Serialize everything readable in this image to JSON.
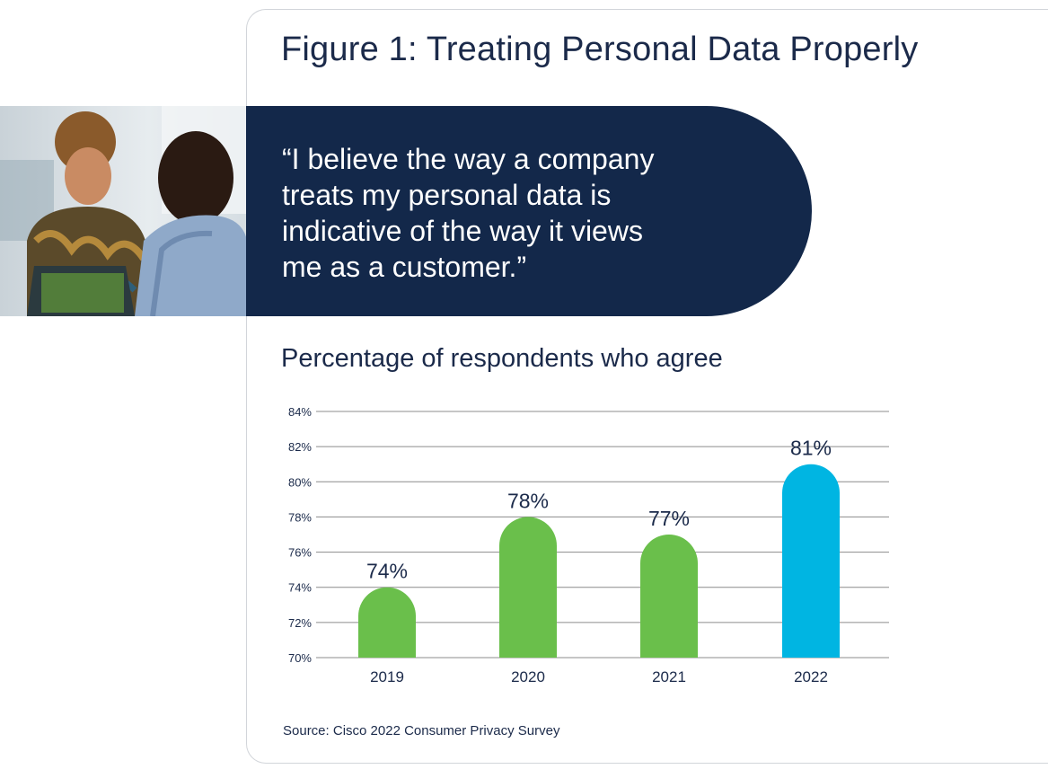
{
  "title": "Figure 1: Treating Personal Data Properly",
  "quote": {
    "lines": [
      "“I believe the way a company",
      " treats my personal data is",
      " indicative of the way it views",
      " me as a customer.”"
    ]
  },
  "subtitle": "Percentage of respondents who agree",
  "source": "Source: Cisco 2022 Consumer Privacy Survey",
  "colors": {
    "navy": "#13284a",
    "green": "#6abf4b",
    "blue": "#00b5e2",
    "grid": "#8c8c8c",
    "text": "#1b2a4a"
  },
  "chart_data": {
    "type": "bar",
    "categories": [
      "2019",
      "2020",
      "2021",
      "2022"
    ],
    "values": [
      74,
      78,
      77,
      81
    ],
    "data_labels": [
      "74%",
      "78%",
      "77%",
      "81%"
    ],
    "bar_colors": [
      "#6abf4b",
      "#6abf4b",
      "#6abf4b",
      "#00b5e2"
    ],
    "ylim": [
      70,
      84
    ],
    "yticks": [
      70,
      72,
      74,
      76,
      78,
      80,
      82,
      84
    ],
    "ytick_labels": [
      "70%",
      "72%",
      "74%",
      "76%",
      "78%",
      "80%",
      "82%",
      "84%"
    ],
    "grid": true,
    "xlabel": "",
    "ylabel": ""
  }
}
